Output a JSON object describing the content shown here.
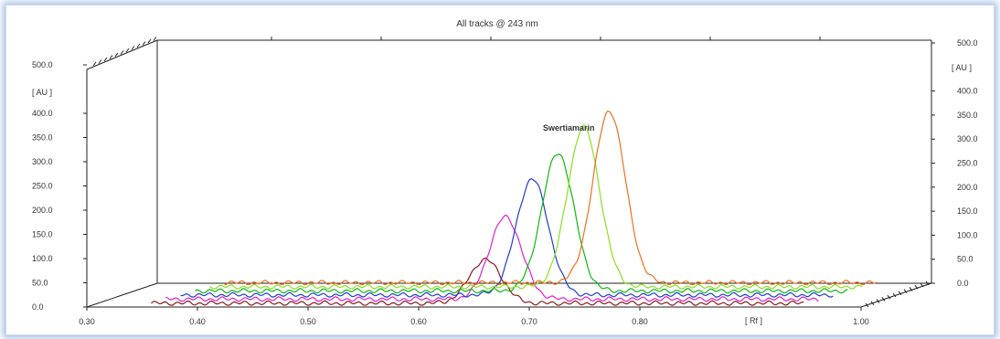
{
  "chart_data": {
    "type": "line",
    "title": "All tracks @ 243 nm",
    "xlabel": "[ Rf ]",
    "ylabel_left": "[ AU ]",
    "ylabel_right": "[ AU ]",
    "xlim": [
      0.3,
      1.0
    ],
    "ylim": [
      0,
      500
    ],
    "x_ticks": [
      "0.30",
      "0.40",
      "0.50",
      "0.60",
      "0.70",
      "0.80",
      "1.00"
    ],
    "y_ticks_left": [
      "0.0",
      "50.0",
      "100.0",
      "150.0",
      "200.0",
      "250.0",
      "300.0",
      "350.0",
      "400.0",
      "500.0"
    ],
    "y_ticks_right": [
      "0.0",
      "50.0",
      "100.0",
      "150.0",
      "200.0",
      "250.0",
      "300.0",
      "350.0",
      "400.0",
      "500.0"
    ],
    "annotation": "Swertiamarin",
    "series": [
      {
        "color": "#8b1a1a",
        "peak_rf": 0.652,
        "peak_au": 90
      },
      {
        "color": "#e020d0",
        "peak_rf": 0.657,
        "peak_au": 170
      },
      {
        "color": "#1f3ed0",
        "peak_rf": 0.668,
        "peak_au": 240
      },
      {
        "color": "#10b810",
        "peak_rf": 0.678,
        "peak_au": 285
      },
      {
        "color": "#88e020",
        "peak_rf": 0.688,
        "peak_au": 330
      },
      {
        "color": "#f07020",
        "peak_rf": 0.698,
        "peak_au": 355
      }
    ]
  }
}
